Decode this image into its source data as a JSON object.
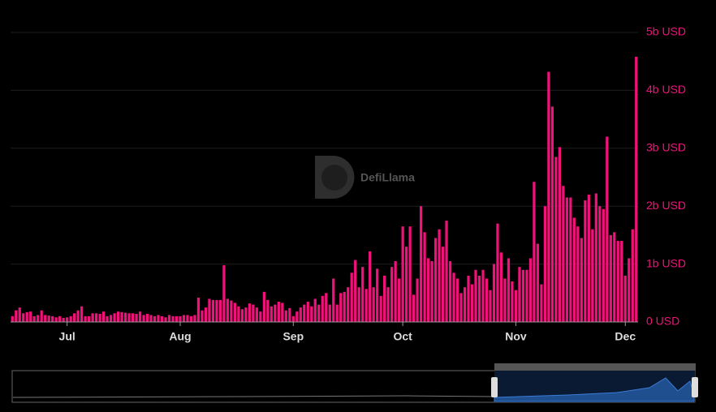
{
  "chart_data": {
    "type": "bar",
    "watermark": "DefiLlama",
    "color": "#f0127a",
    "categories": [
      null,
      null,
      null,
      null,
      null,
      null,
      null,
      null,
      null,
      null,
      null,
      null,
      null,
      null,
      null,
      "Jul",
      null,
      null,
      null,
      null,
      null,
      null,
      null,
      null,
      null,
      null,
      null,
      null,
      null,
      null,
      null,
      null,
      null,
      null,
      null,
      null,
      null,
      null,
      null,
      null,
      null,
      null,
      null,
      null,
      null,
      null,
      "Aug",
      null,
      null,
      null,
      null,
      null,
      null,
      null,
      null,
      null,
      null,
      null,
      null,
      null,
      null,
      null,
      null,
      null,
      null,
      null,
      null,
      null,
      null,
      null,
      null,
      null,
      null,
      null,
      null,
      null,
      null,
      "Sep",
      null,
      null,
      null,
      null,
      null,
      null,
      null,
      null,
      null,
      null,
      null,
      null,
      null,
      null,
      null,
      null,
      null,
      null,
      null,
      null,
      null,
      null,
      null,
      null,
      null,
      null,
      null,
      null,
      null,
      "Oct",
      null,
      null,
      null,
      null,
      null,
      null,
      null,
      null,
      null,
      null,
      null,
      null,
      null,
      null,
      null,
      null,
      null,
      null,
      null,
      null,
      null,
      null,
      null,
      null,
      null,
      null,
      null,
      null,
      null,
      null,
      "Nov",
      null,
      null,
      null,
      null,
      null,
      null,
      null,
      null,
      null,
      null,
      null,
      null,
      null,
      null,
      null,
      null,
      null,
      null,
      null,
      null,
      null,
      null,
      null,
      null,
      null,
      null,
      null,
      null,
      null,
      "Dec",
      null,
      null,
      null
    ],
    "values": [
      0.1,
      0.2,
      0.25,
      0.15,
      0.17,
      0.18,
      0.1,
      0.12,
      0.2,
      0.12,
      0.11,
      0.1,
      0.08,
      0.1,
      0.07,
      0.08,
      0.1,
      0.15,
      0.2,
      0.27,
      0.1,
      0.1,
      0.15,
      0.15,
      0.14,
      0.18,
      0.1,
      0.12,
      0.15,
      0.18,
      0.17,
      0.16,
      0.15,
      0.15,
      0.14,
      0.18,
      0.12,
      0.14,
      0.12,
      0.1,
      0.12,
      0.1,
      0.08,
      0.12,
      0.1,
      0.1,
      0.1,
      0.12,
      0.12,
      0.1,
      0.12,
      0.42,
      0.2,
      0.25,
      0.4,
      0.38,
      0.38,
      0.38,
      0.98,
      0.4,
      0.37,
      0.33,
      0.27,
      0.22,
      0.25,
      0.32,
      0.3,
      0.25,
      0.18,
      0.52,
      0.38,
      0.27,
      0.3,
      0.35,
      0.33,
      0.2,
      0.24,
      0.1,
      0.18,
      0.25,
      0.3,
      0.35,
      0.27,
      0.4,
      0.3,
      0.45,
      0.5,
      0.3,
      0.75,
      0.3,
      0.5,
      0.52,
      0.6,
      0.85,
      1.07,
      0.6,
      0.95,
      0.57,
      1.22,
      0.6,
      0.92,
      0.45,
      0.8,
      0.6,
      0.95,
      1.05,
      0.75,
      1.65,
      1.3,
      1.65,
      0.47,
      0.75,
      2.0,
      1.55,
      1.1,
      1.05,
      1.45,
      1.6,
      1.3,
      1.75,
      1.05,
      0.85,
      0.75,
      0.5,
      0.6,
      0.8,
      0.65,
      0.9,
      0.8,
      0.9,
      0.75,
      0.55,
      1.0,
      1.7,
      1.2,
      0.75,
      1.1,
      0.7,
      0.55,
      0.95,
      0.9,
      0.9,
      1.1,
      2.42,
      1.35,
      0.65,
      2.0,
      4.32,
      3.72,
      2.85,
      3.02,
      2.35,
      2.15,
      2.15,
      1.8,
      1.65,
      1.45,
      2.1,
      2.2,
      1.6,
      2.22,
      2.0,
      1.95,
      3.2,
      1.5,
      1.55,
      1.4,
      1.4,
      0.8,
      1.1,
      1.6,
      4.58
    ],
    "ylim": [
      0,
      5
    ],
    "yticks": [
      {
        "value": 0,
        "label": "0 USD"
      },
      {
        "value": 1,
        "label": "1b USD"
      },
      {
        "value": 2,
        "label": "2b USD"
      },
      {
        "value": 3,
        "label": "3b USD"
      },
      {
        "value": 4,
        "label": "4b USD"
      },
      {
        "value": 5,
        "label": "5b USD"
      }
    ],
    "grid": true
  }
}
